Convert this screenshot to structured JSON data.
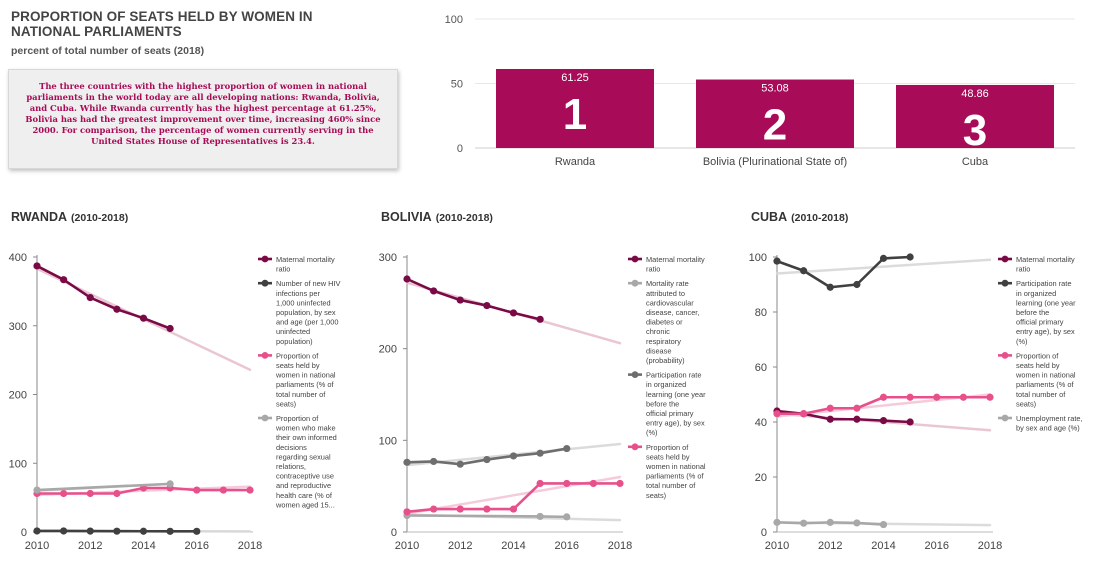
{
  "title": "PROPORTION OF SEATS HELD BY WOMEN IN NATIONAL PARLIAMENTS",
  "subtitle": "percent of total number of seats (2018)",
  "note": "The three countries with the highest proportion of women in national parliaments in the world today are all developing nations: Rwanda, Bolivia, and Cuba. While Rwanda currently has the highest percentage at 61.25%, Bolivia has had the greatest improvement over time, increasing 460% since 2000. For comparison, the percentage of women currently serving in the United States House of Representatives is 23.4.",
  "colors": {
    "bar": "#a80b57",
    "maroon": "#7a0a45",
    "dark": "#404040",
    "light_gray": "#a8a8a8",
    "mid_gray": "#6e6e6e",
    "pink": "#e8508c",
    "maroon_trend": "#e8c0d0",
    "pink_trend": "#f4c6d8",
    "gray_trend": "#d8d8d8"
  },
  "chart_data": [
    {
      "type": "bar",
      "categories": [
        "Rwanda",
        "Bolivia (Plurinational State of)",
        "Cuba"
      ],
      "values": [
        61.25,
        53.08,
        48.86
      ],
      "value_labels": [
        "61.25",
        "53.08",
        "48.86"
      ],
      "ranks": [
        "1",
        "2",
        "3"
      ],
      "yticks": [
        "0",
        "50",
        "100"
      ],
      "ylim": [
        0,
        100
      ]
    },
    {
      "type": "line",
      "title": "RWANDA",
      "title_range": "(2010-2018)",
      "ylim": [
        0,
        400
      ],
      "yticks": [
        "0",
        "100",
        "200",
        "300",
        "400"
      ],
      "xlim": [
        2010,
        2018
      ],
      "xticks": [
        "2010",
        "2012",
        "2014",
        "2016",
        "2018"
      ],
      "series": [
        {
          "name": "Maternal mortality ratio",
          "color_key": "maroon",
          "trend_key": "maroon_trend",
          "x": [
            2010,
            2011,
            2012,
            2013,
            2014,
            2015
          ],
          "y": [
            387,
            367,
            341,
            324,
            311,
            296
          ],
          "trend": [
            383,
            236
          ]
        },
        {
          "name": "Number of new HIV infections per 1,000 uninfected population, by sex and age (per 1,000 uninfected population)",
          "color_key": "dark",
          "trend_key": "gray_trend",
          "x": [
            2010,
            2011,
            2012,
            2013,
            2014,
            2015,
            2016
          ],
          "y": [
            1.5,
            1.5,
            1.3,
            1.2,
            1.1,
            1.0,
            1.0
          ],
          "trend": [
            1.5,
            0.9
          ]
        },
        {
          "name": "Proportion of seats held by women in national parliaments (% of total number of seats)",
          "color_key": "pink",
          "trend_key": "pink_trend",
          "x": [
            2010,
            2011,
            2012,
            2013,
            2014,
            2015,
            2016,
            2017,
            2018
          ],
          "y": [
            56,
            56,
            56,
            56,
            64,
            64,
            61,
            61,
            61
          ],
          "trend": [
            54,
            66
          ]
        },
        {
          "name": "Proportion of women who make their own informed decisions regarding sexual relations, contraceptive use and reproductive health care (% of women aged 15...",
          "color_key": "light_gray",
          "trend_key": "gray_trend",
          "x": [
            2010,
            2015
          ],
          "y": [
            61,
            70
          ],
          "trend": [
            60,
            70
          ],
          "trend_x": [
            2010,
            2015
          ]
        }
      ]
    },
    {
      "type": "line",
      "title": "BOLIVIA",
      "title_range": "(2010-2018)",
      "ylim": [
        0,
        300
      ],
      "yticks": [
        "0",
        "100",
        "200",
        "300"
      ],
      "xlim": [
        2010,
        2018
      ],
      "xticks": [
        "2010",
        "2012",
        "2014",
        "2016",
        "2018"
      ],
      "series": [
        {
          "name": "Maternal mortality ratio",
          "color_key": "maroon",
          "trend_key": "maroon_trend",
          "x": [
            2010,
            2011,
            2012,
            2013,
            2014,
            2015
          ],
          "y": [
            276,
            263,
            253,
            247,
            239,
            232
          ],
          "trend": [
            272,
            206
          ]
        },
        {
          "name": "Mortality rate attributed to cardiovascular disease, cancer, diabetes or chronic respiratory disease (probability)",
          "color_key": "light_gray",
          "trend_key": "gray_trend",
          "x": [
            2010,
            2015,
            2016
          ],
          "y": [
            18,
            17,
            16.5
          ],
          "trend": [
            19,
            13
          ]
        },
        {
          "name": "Participation rate in organized learning (one year before the official primary entry age), by sex (%)",
          "color_key": "mid_gray",
          "trend_key": "gray_trend",
          "x": [
            2010,
            2011,
            2012,
            2013,
            2014,
            2015,
            2016
          ],
          "y": [
            76,
            77,
            74,
            79,
            83,
            86,
            91
          ],
          "trend": [
            73,
            96
          ]
        },
        {
          "name": "Proportion of seats held by women in national parliaments (% of total number of seats)",
          "color_key": "pink",
          "trend_key": "pink_trend",
          "x": [
            2010,
            2011,
            2012,
            2013,
            2014,
            2015,
            2016,
            2017,
            2018
          ],
          "y": [
            22,
            25,
            25,
            25,
            25,
            53,
            53,
            53,
            53
          ],
          "trend": [
            20,
            60
          ]
        }
      ]
    },
    {
      "type": "line",
      "title": "CUBA",
      "title_range": "(2010-2018)",
      "ylim": [
        0,
        100
      ],
      "yticks": [
        "0",
        "20",
        "40",
        "60",
        "80",
        "100"
      ],
      "xlim": [
        2010,
        2018
      ],
      "xticks": [
        "2010",
        "2012",
        "2014",
        "2016",
        "2018"
      ],
      "series": [
        {
          "name": "Maternal mortality ratio",
          "color_key": "maroon",
          "trend_key": "maroon_trend",
          "x": [
            2010,
            2011,
            2012,
            2013,
            2014,
            2015
          ],
          "y": [
            44,
            43,
            41,
            41,
            40.5,
            40
          ],
          "trend": [
            43,
            37
          ]
        },
        {
          "name": "Participation rate in organized learning (one year before the official primary entry age), by sex (%)",
          "color_key": "dark",
          "trend_key": "gray_trend",
          "x": [
            2010,
            2011,
            2012,
            2013,
            2014,
            2015
          ],
          "y": [
            98.5,
            95,
            89,
            90,
            99.5,
            100
          ],
          "trend": [
            94,
            99
          ]
        },
        {
          "name": "Proportion of seats held by women in national parliaments (% of total number of seats)",
          "color_key": "pink",
          "trend_key": "pink_trend",
          "x": [
            2010,
            2011,
            2012,
            2013,
            2014,
            2015,
            2016,
            2017,
            2018
          ],
          "y": [
            43,
            43,
            45,
            45,
            49,
            49,
            49,
            49,
            49
          ],
          "trend": [
            42,
            50
          ]
        },
        {
          "name": "Unemployment rate, by sex and age (%)",
          "color_key": "light_gray",
          "trend_key": "gray_trend",
          "x": [
            2010,
            2011,
            2012,
            2013,
            2014
          ],
          "y": [
            3.5,
            3.2,
            3.5,
            3.3,
            2.7
          ],
          "trend": [
            3.5,
            2.5
          ]
        }
      ]
    }
  ]
}
